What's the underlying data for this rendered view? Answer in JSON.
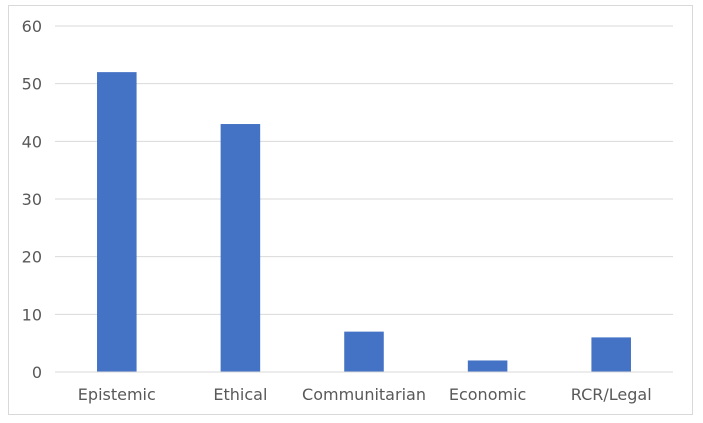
{
  "chart_data": {
    "type": "bar",
    "title": "",
    "xlabel": "",
    "ylabel": "",
    "categories": [
      "Epistemic",
      "Ethical",
      "Communitarian",
      "Economic",
      "RCR/Legal"
    ],
    "values": [
      52,
      43,
      7,
      2,
      6
    ],
    "ylim": [
      0,
      60
    ],
    "yticks": [
      0,
      10,
      20,
      30,
      40,
      50,
      60
    ],
    "grid": true,
    "legend": "none",
    "bar_color": "#4472c4",
    "grid_color": "#d9d9d9",
    "text_color": "#595959"
  }
}
